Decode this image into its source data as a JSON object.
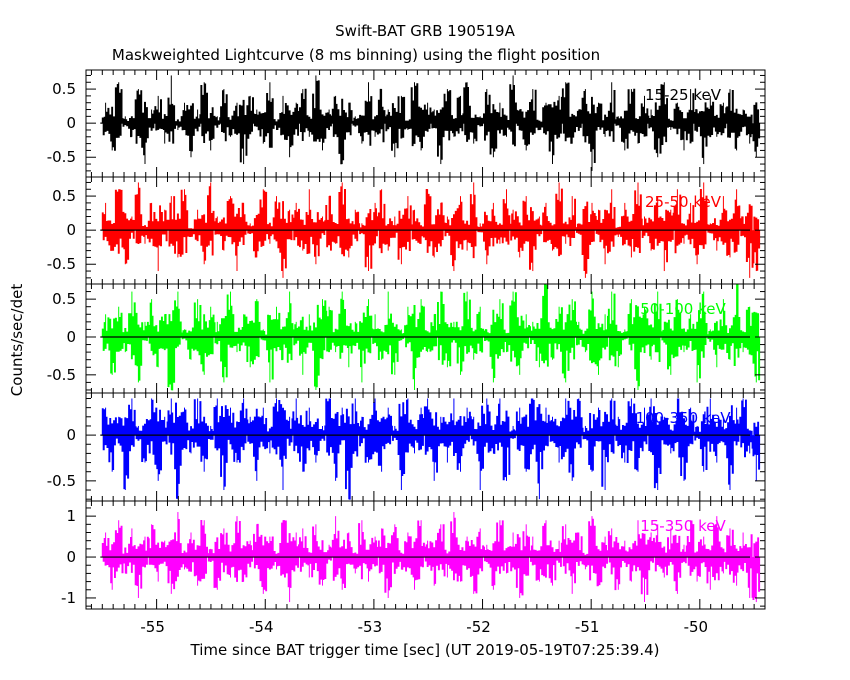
{
  "chart_data": {
    "type": "line",
    "title": "Swift-BAT GRB 190519A",
    "subtitle": "Maskweighted Lightcurve (8 ms binning) using the flight position",
    "xlabel": "Time since BAT trigger time [sec] (UT 2019-05-19T07:25:39.4)",
    "ylabel": "Counts/sec/det",
    "xlim": [
      -55.65,
      -49.4
    ],
    "x_start": -55.5,
    "x_end": -49.45,
    "xticks": [
      "-55",
      "-54",
      "-53",
      "-52",
      "-51",
      "-50"
    ],
    "xtick_values": [
      -55,
      -54,
      -53,
      -52,
      -51,
      -50
    ],
    "panels": [
      {
        "name": "15-25 keV",
        "color": "#000000",
        "ylim": [
          -0.79,
          0.78
        ],
        "yticks": [
          "0.5",
          "0",
          "-0.5"
        ],
        "ytick_values": [
          0.5,
          0,
          -0.5
        ],
        "values": [
          0.3,
          -0.4,
          0.6,
          0.1,
          -0.2,
          0.5,
          -0.6,
          0.2,
          0.4,
          -0.3,
          0.7,
          -0.1,
          0.3,
          -0.5,
          0.2,
          0.6,
          -0.4,
          0.1,
          0.5,
          -0.2,
          0.3,
          -0.6,
          0.4,
          0.2,
          -0.3,
          0.6,
          -0.1,
          0.4,
          -0.5,
          0.3,
          0.5,
          -0.2,
          0.7,
          -0.4,
          0.2,
          0.4,
          -0.6,
          0.3,
          0.1,
          -0.3,
          0.6,
          -0.2,
          0.5,
          0.2,
          -0.5,
          0.4,
          -0.1,
          0.6,
          -0.4,
          0.3,
          0.2,
          -0.6,
          0.5,
          -0.2,
          0.4,
          0.6,
          -0.3,
          0.1,
          0.5,
          -0.5,
          0.3,
          -0.2,
          0.7,
          0.2,
          -0.4,
          0.5,
          -0.1,
          0.3,
          -0.6,
          0.4,
          0.6,
          -0.3,
          0.2,
          0.5,
          -0.7,
          0.3,
          -0.2,
          0.6,
          0.1,
          -0.4,
          0.5,
          -0.3,
          0.4,
          0.2,
          -0.5,
          0.6,
          -0.1,
          0.3,
          -0.4,
          0.5,
          0.2,
          -0.6,
          0.4,
          -0.2,
          0.3,
          0.5,
          -0.4,
          0.2,
          -0.3,
          -0.5
        ]
      },
      {
        "name": "25-50 keV",
        "color": "#ff0000",
        "ylim": [
          -0.79,
          0.78
        ],
        "yticks": [
          "0.5",
          "0",
          "-0.5"
        ],
        "ytick_values": [
          0.5,
          0,
          -0.5
        ],
        "values": [
          0.4,
          -0.3,
          0.6,
          -0.5,
          0.2,
          0.7,
          -0.2,
          0.4,
          -0.6,
          0.3,
          0.5,
          -0.4,
          0.6,
          -0.1,
          0.3,
          -0.5,
          0.7,
          0.2,
          -0.3,
          0.5,
          -0.6,
          0.4,
          0.1,
          -0.4,
          0.6,
          -0.2,
          0.5,
          -0.7,
          0.3,
          0.4,
          -0.3,
          0.6,
          -0.5,
          0.2,
          0.5,
          -0.2,
          0.7,
          -0.4,
          0.3,
          0.1,
          -0.6,
          0.4,
          0.6,
          -0.3,
          0.2,
          -0.5,
          0.5,
          0.3,
          -0.2,
          0.6,
          -0.4,
          0.4,
          0.2,
          -0.6,
          0.5,
          -0.3,
          0.7,
          0.1,
          -0.5,
          0.4,
          -0.2,
          0.6,
          0.3,
          -0.4,
          0.5,
          -0.6,
          0.2,
          0.4,
          -0.3,
          0.7,
          -0.2,
          0.5,
          0.1,
          -0.7,
          0.4,
          0.3,
          -0.5,
          0.6,
          -0.1,
          0.4,
          -0.4,
          0.7,
          0.2,
          -0.3,
          0.5,
          -0.6,
          0.3,
          0.6,
          -0.2,
          0.4,
          -0.5,
          0.7,
          0.1,
          -0.3,
          0.5,
          -0.4,
          0.6,
          0.2,
          -0.7,
          -0.6
        ]
      },
      {
        "name": "50-100 keV",
        "color": "#00ff00",
        "ylim": [
          -0.74,
          0.7
        ],
        "yticks": [
          "0.5",
          "0",
          "-0.5"
        ],
        "ytick_values": [
          0.5,
          0,
          -0.5
        ],
        "values": [
          0.3,
          -0.5,
          0.4,
          -0.2,
          0.6,
          -0.6,
          0.2,
          0.5,
          -0.4,
          0.3,
          -0.7,
          0.6,
          0.1,
          -0.3,
          0.5,
          -0.5,
          0.4,
          0.2,
          -0.6,
          0.6,
          -0.2,
          0.3,
          -0.4,
          0.5,
          0.1,
          -0.6,
          0.4,
          -0.3,
          0.6,
          0.2,
          -0.5,
          0.3,
          -0.7,
          0.5,
          0.4,
          -0.2,
          0.6,
          -0.4,
          0.2,
          -0.6,
          0.5,
          0.3,
          -0.3,
          0.6,
          -0.5,
          0.1,
          0.4,
          -0.7,
          0.5,
          -0.2,
          0.3,
          0.6,
          -0.4,
          0.2,
          -0.5,
          0.6,
          -0.3,
          0.4,
          0.1,
          -0.6,
          0.5,
          -0.2,
          0.6,
          -0.5,
          0.3,
          0.2,
          -0.4,
          0.7,
          -0.3,
          0.4,
          -0.6,
          0.5,
          0.2,
          -0.2,
          0.6,
          -0.5,
          0.3,
          0.6,
          -0.4,
          0.1,
          0.5,
          -0.7,
          0.4,
          -0.3,
          0.6,
          0.2,
          -0.5,
          0.5,
          -0.2,
          0.3,
          -0.6,
          0.6,
          0.1,
          -0.4,
          0.5,
          -0.3,
          0.7,
          -0.2,
          0.4,
          -0.6
        ]
      },
      {
        "name": "100-350 keV",
        "color": "#0000ff",
        "ylim": [
          -0.72,
          0.46
        ],
        "yticks": [
          "0",
          "-0.5"
        ],
        "ytick_values": [
          0,
          -0.5
        ],
        "values": [
          0.3,
          -0.4,
          0.2,
          -0.6,
          0.4,
          0.1,
          -0.3,
          0.4,
          -0.5,
          0.2,
          0.4,
          -0.7,
          0.3,
          -0.2,
          0.4,
          -0.4,
          0.1,
          0.4,
          -0.6,
          0.3,
          -0.3,
          0.4,
          0.2,
          -0.5,
          0.3,
          -0.2,
          0.4,
          -0.6,
          0.2,
          0.4,
          -0.4,
          0.3,
          -0.3,
          0.1,
          0.4,
          -0.5,
          0.3,
          -0.7,
          0.4,
          0.2,
          -0.3,
          0.4,
          -0.4,
          0.3,
          0.1,
          -0.6,
          0.4,
          -0.2,
          0.3,
          0.4,
          -0.5,
          0.2,
          -0.3,
          0.4,
          -0.4,
          0.3,
          0.2,
          -0.6,
          0.4,
          -0.2,
          0.4,
          -0.5,
          0.1,
          0.3,
          -0.4,
          0.4,
          -0.7,
          0.3,
          0.2,
          -0.3,
          0.4,
          -0.5,
          0.4,
          0.1,
          -0.4,
          0.3,
          -0.6,
          0.4,
          0.2,
          -0.3,
          0.4,
          -0.4,
          0.3,
          0.4,
          -0.6,
          0.2,
          -0.2,
          0.4,
          -0.5,
          0.3,
          0.1,
          -0.4,
          0.4,
          -0.3,
          0.2,
          -0.6,
          0.3,
          0.4,
          -0.2,
          -0.5
        ]
      },
      {
        "name": "15-350 keV",
        "color": "#ff00ff",
        "ylim": [
          -1.27,
          1.37
        ],
        "yticks": [
          "1",
          "0",
          "-1"
        ],
        "ytick_values": [
          1,
          0,
          -1
        ],
        "values": [
          0.6,
          -0.8,
          0.9,
          -0.4,
          0.7,
          -1.0,
          0.5,
          0.8,
          -0.6,
          0.4,
          -0.9,
          1.1,
          -0.3,
          0.6,
          -0.7,
          0.9,
          0.2,
          -0.8,
          0.7,
          -0.5,
          1.0,
          -0.6,
          0.4,
          0.8,
          -0.9,
          0.5,
          -0.3,
          0.9,
          -1.1,
          0.6,
          0.7,
          -0.5,
          0.8,
          -0.7,
          0.3,
          1.0,
          -0.8,
          0.6,
          -0.4,
          0.9,
          -0.6,
          0.5,
          0.7,
          -1.0,
          0.8,
          -0.3,
          0.6,
          -0.8,
          0.9,
          0.4,
          -0.7,
          0.8,
          -0.5,
          1.1,
          -0.6,
          0.5,
          -0.9,
          0.7,
          0.3,
          -0.8,
          0.9,
          -0.4,
          0.6,
          -1.0,
          0.8,
          0.5,
          -0.6,
          0.9,
          -0.7,
          0.4,
          0.8,
          -0.9,
          0.6,
          -0.3,
          1.0,
          -0.7,
          0.5,
          0.7,
          -0.8,
          0.4,
          -0.6,
          0.9,
          -1.1,
          0.6,
          0.8,
          -0.5,
          0.7,
          -0.9,
          0.3,
          0.9,
          -0.6,
          0.5,
          -0.8,
          1.0,
          -0.4,
          0.7,
          -0.7,
          0.6,
          -1.0,
          -1.1
        ]
      }
    ]
  }
}
